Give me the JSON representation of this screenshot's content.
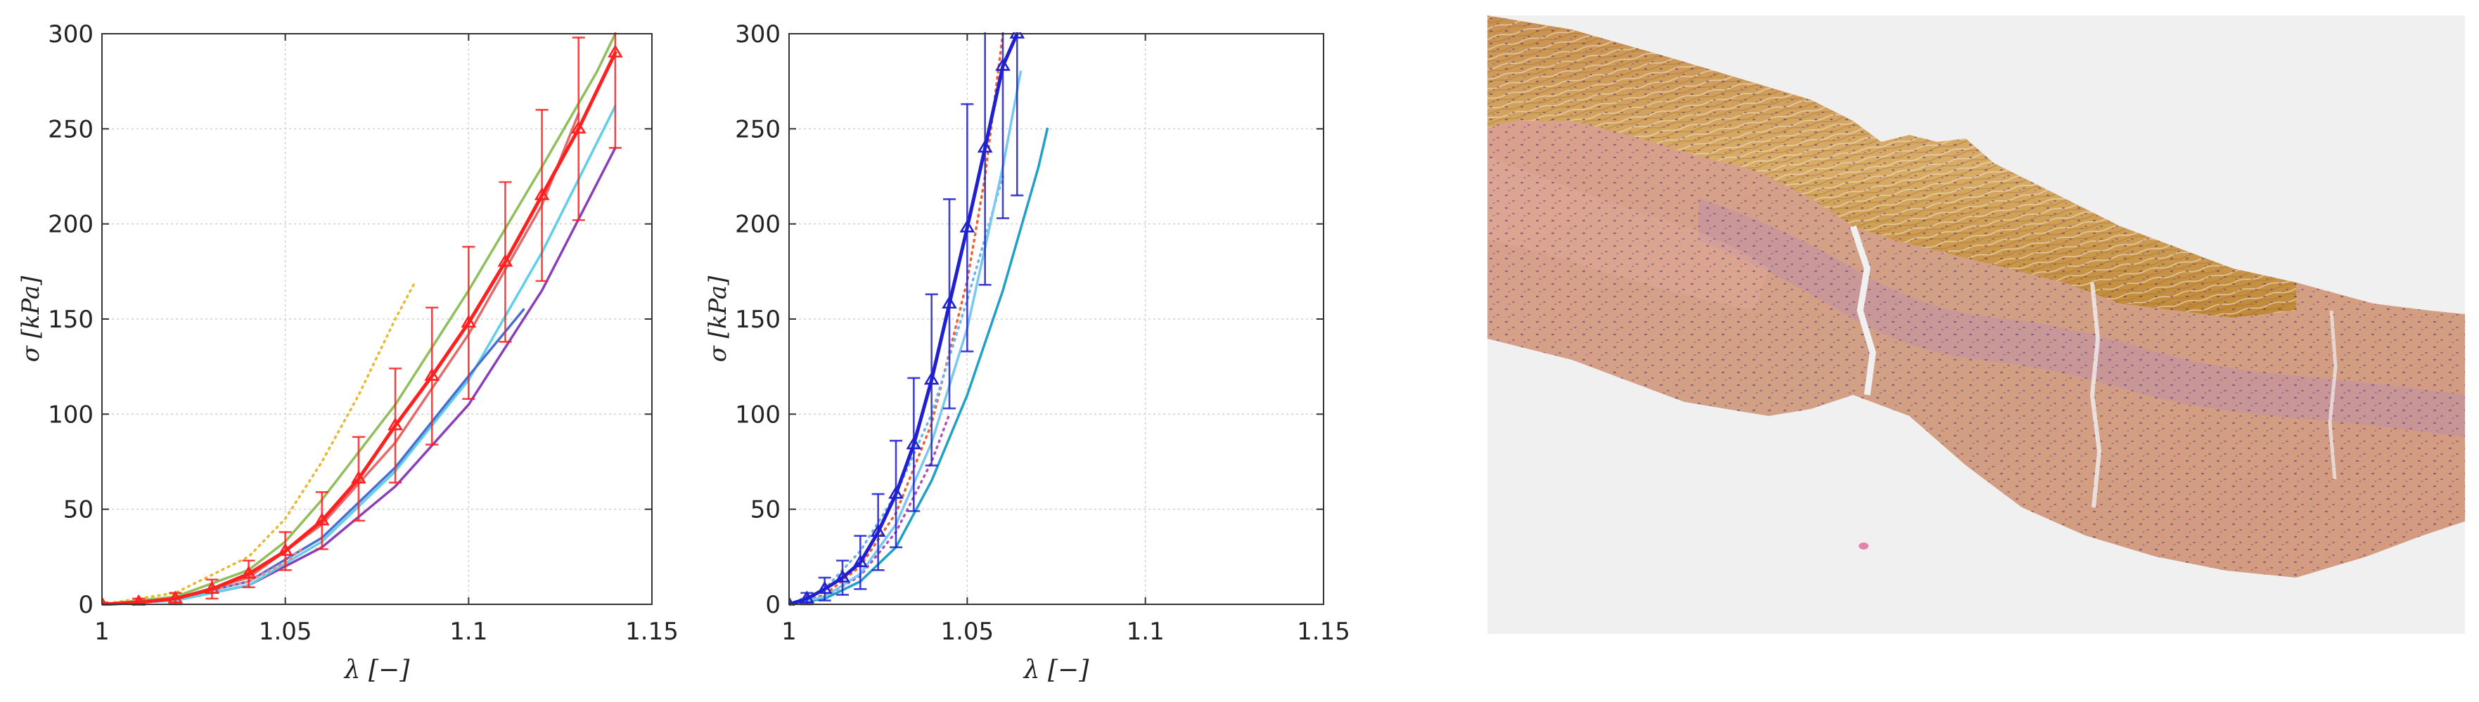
{
  "chart_data": [
    {
      "type": "line",
      "panel": "left",
      "xlabel": "λ [−]",
      "ylabel": "σ [kPa]",
      "xlim": [
        1,
        1.15
      ],
      "ylim": [
        0,
        300
      ],
      "xticks": [
        "1",
        "1.05",
        "1.1",
        "1.15"
      ],
      "yticks": [
        "0",
        "50",
        "100",
        "150",
        "200",
        "250",
        "300"
      ],
      "grid": true,
      "legend": "none",
      "series": [
        {
          "color": "#8fbf5a",
          "style": "solid",
          "x": [
            1,
            1.02,
            1.04,
            1.05,
            1.06,
            1.08,
            1.1,
            1.12,
            1.135,
            1.14
          ],
          "y": [
            0,
            4,
            18,
            33,
            55,
            105,
            165,
            230,
            280,
            300
          ]
        },
        {
          "color": "#e8b830",
          "style": "dotted",
          "x": [
            1,
            1.02,
            1.04,
            1.05,
            1.06,
            1.07,
            1.08,
            1.085
          ],
          "y": [
            0,
            6,
            25,
            45,
            75,
            110,
            150,
            168
          ]
        },
        {
          "color": "#e46b6b",
          "style": "solid",
          "x": [
            1,
            1.02,
            1.04,
            1.06,
            1.08,
            1.1,
            1.12,
            1.13
          ],
          "y": [
            0,
            3,
            14,
            42,
            85,
            142,
            210,
            258
          ]
        },
        {
          "color": "#8a3fb8",
          "style": "solid",
          "x": [
            1,
            1.02,
            1.04,
            1.06,
            1.08,
            1.1,
            1.12,
            1.14
          ],
          "y": [
            0,
            2,
            10,
            30,
            62,
            105,
            165,
            240
          ]
        },
        {
          "color": "#5fcfe8",
          "style": "solid",
          "x": [
            1,
            1.02,
            1.04,
            1.06,
            1.08,
            1.1,
            1.12,
            1.14
          ],
          "y": [
            0,
            2,
            10,
            33,
            70,
            118,
            185,
            262
          ]
        },
        {
          "color": "#4a6ed0",
          "style": "solid",
          "x": [
            1,
            1.02,
            1.04,
            1.06,
            1.08,
            1.1,
            1.115
          ],
          "y": [
            0,
            3,
            12,
            35,
            72,
            120,
            155
          ]
        },
        {
          "color": "#f08a8a",
          "style": "dotted",
          "x": [
            1,
            1.02,
            1.04,
            1.05,
            1.055
          ],
          "y": [
            0,
            3,
            12,
            22,
            30
          ]
        },
        {
          "color": "#ff2020",
          "style": "solid-triangle",
          "mean": true,
          "x": [
            1,
            1.01,
            1.02,
            1.03,
            1.04,
            1.05,
            1.06,
            1.07,
            1.08,
            1.09,
            1.1,
            1.11,
            1.12,
            1.13,
            1.14
          ],
          "y": [
            0,
            1,
            3,
            8,
            16,
            28,
            44,
            66,
            94,
            120,
            148,
            180,
            215,
            250,
            290
          ],
          "err": [
            1,
            2,
            3,
            5,
            7,
            10,
            15,
            22,
            30,
            36,
            40,
            42,
            45,
            48,
            50
          ]
        }
      ]
    },
    {
      "type": "line",
      "panel": "middle",
      "xlabel": "λ [−]",
      "ylabel": "σ [kPa]",
      "xlim": [
        1,
        1.15
      ],
      "ylim": [
        0,
        300
      ],
      "xticks": [
        "1",
        "1.05",
        "1.1",
        "1.15"
      ],
      "yticks": [
        "0",
        "50",
        "100",
        "150",
        "200",
        "250",
        "300"
      ],
      "grid": true,
      "legend": "none",
      "series": [
        {
          "color": "#f06030",
          "style": "dotted",
          "x": [
            1,
            1.01,
            1.02,
            1.03,
            1.04,
            1.05,
            1.055,
            1.06
          ],
          "y": [
            0,
            5,
            20,
            48,
            95,
            170,
            225,
            300
          ]
        },
        {
          "color": "#6fb0f0",
          "style": "dotted",
          "x": [
            1,
            1.01,
            1.02,
            1.03,
            1.04,
            1.05,
            1.06
          ],
          "y": [
            0,
            8,
            28,
            58,
            100,
            160,
            225
          ]
        },
        {
          "color": "#b050c0",
          "style": "dotted",
          "x": [
            1,
            1.01,
            1.02,
            1.03,
            1.04,
            1.045
          ],
          "y": [
            0,
            4,
            15,
            38,
            75,
            100
          ]
        },
        {
          "color": "#20a0c8",
          "style": "solid",
          "x": [
            1,
            1.01,
            1.02,
            1.03,
            1.04,
            1.05,
            1.06,
            1.07,
            1.0725
          ],
          "y": [
            0,
            3,
            12,
            30,
            65,
            110,
            165,
            230,
            250
          ]
        },
        {
          "color": "#78c8f0",
          "style": "solid",
          "x": [
            1,
            1.01,
            1.02,
            1.03,
            1.04,
            1.05,
            1.06,
            1.065
          ],
          "y": [
            0,
            4,
            16,
            42,
            85,
            145,
            230,
            280
          ]
        },
        {
          "color": "#2020d0",
          "style": "solid-triangle",
          "mean": true,
          "x": [
            1,
            1.005,
            1.01,
            1.015,
            1.02,
            1.025,
            1.03,
            1.035,
            1.04,
            1.045,
            1.05,
            1.055,
            1.06,
            1.064
          ],
          "y": [
            0,
            3,
            8,
            14,
            22,
            38,
            58,
            84,
            118,
            158,
            198,
            240,
            283,
            300
          ],
          "err": [
            1,
            3,
            6,
            9,
            14,
            20,
            28,
            35,
            45,
            55,
            65,
            72,
            80,
            85
          ]
        }
      ]
    }
  ],
  "histology": {
    "colors": {
      "background": "#f1f0f1",
      "collagen_tan": "#d8b070",
      "collagen_dark": "#c08830",
      "media_pink": "#dba090",
      "media_mauve": "#c090a8",
      "nuclei": "#4a3070"
    }
  }
}
